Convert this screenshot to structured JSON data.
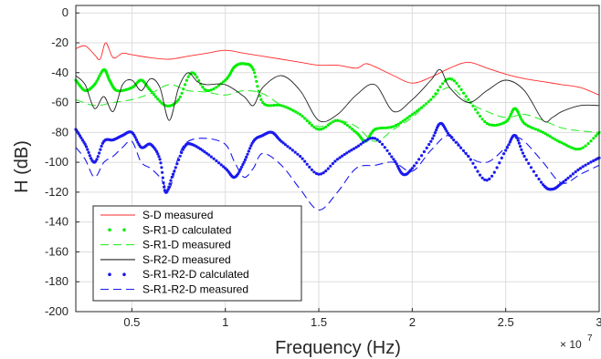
{
  "chart_data": {
    "type": "line",
    "xlabel": "Frequency (Hz)",
    "ylabel": "H (dB)",
    "x_multiplier_label": "× 10",
    "x_multiplier_exp": "7",
    "xlim": [
      0.2,
      3.0
    ],
    "ylim": [
      -200,
      5
    ],
    "x_ticks": [
      0.5,
      1,
      1.5,
      2,
      2.5,
      3
    ],
    "x_tick_labels": [
      "0.5",
      "1",
      "1.5",
      "2",
      "2.5",
      "3"
    ],
    "y_ticks": [
      0,
      -20,
      -40,
      -60,
      -80,
      -100,
      -120,
      -140,
      -160,
      -180,
      -200
    ],
    "y_tick_labels": [
      "0",
      "-20",
      "-40",
      "-60",
      "-80",
      "-100",
      "-120",
      "-140",
      "-160",
      "-180",
      "-200"
    ],
    "grid": true,
    "legend_position": "bottom-left",
    "series": [
      {
        "name": "S-D measured",
        "color": "#ff2a2a",
        "style": "solid",
        "x": [
          0.2,
          0.25,
          0.3,
          0.33,
          0.36,
          0.4,
          0.45,
          0.5,
          0.6,
          0.7,
          0.8,
          0.9,
          1.0,
          1.1,
          1.2,
          1.3,
          1.4,
          1.5,
          1.6,
          1.7,
          1.75,
          1.8,
          1.9,
          2.0,
          2.1,
          2.2,
          2.3,
          2.4,
          2.5,
          2.6,
          2.7,
          2.8,
          2.9,
          3.0
        ],
        "y": [
          -24,
          -22,
          -28,
          -31,
          -20,
          -30,
          -27,
          -28,
          -30,
          -31,
          -29,
          -27,
          -25,
          -27,
          -29,
          -31,
          -33,
          -35,
          -35,
          -37,
          -34,
          -36,
          -42,
          -47,
          -43,
          -37,
          -33,
          -37,
          -41,
          -44,
          -46,
          -48,
          -50,
          -55
        ]
      },
      {
        "name": "S-R1-D calculated",
        "color": "#00ee00",
        "style": "dots",
        "x": [
          0.2,
          0.25,
          0.3,
          0.35,
          0.38,
          0.42,
          0.5,
          0.55,
          0.6,
          0.68,
          0.75,
          0.82,
          0.9,
          1.0,
          1.05,
          1.1,
          1.15,
          1.2,
          1.3,
          1.4,
          1.5,
          1.6,
          1.7,
          1.75,
          1.8,
          1.9,
          2.0,
          2.1,
          2.2,
          2.3,
          2.4,
          2.5,
          2.55,
          2.6,
          2.7,
          2.8,
          2.9,
          3.0
        ],
        "y": [
          -45,
          -52,
          -48,
          -38,
          -45,
          -52,
          -50,
          -45,
          -52,
          -62,
          -58,
          -40,
          -52,
          -45,
          -36,
          -34,
          -38,
          -60,
          -62,
          -68,
          -78,
          -72,
          -80,
          -86,
          -78,
          -76,
          -68,
          -58,
          -44,
          -58,
          -74,
          -73,
          -64,
          -74,
          -80,
          -87,
          -91,
          -80
        ]
      },
      {
        "name": "S-R1-D measured",
        "color": "#33ee33",
        "style": "dashed",
        "x": [
          0.2,
          0.3,
          0.4,
          0.5,
          0.6,
          0.7,
          0.8,
          0.9,
          1.0,
          1.1,
          1.2,
          1.3,
          1.4,
          1.5,
          1.6,
          1.7,
          1.8,
          1.9,
          2.0,
          2.1,
          2.2,
          2.3,
          2.4,
          2.5,
          2.6,
          2.7,
          2.8,
          2.9,
          3.0
        ],
        "y": [
          -58,
          -62,
          -60,
          -58,
          -54,
          -48,
          -52,
          -53,
          -55,
          -52,
          -54,
          -62,
          -68,
          -76,
          -72,
          -76,
          -86,
          -78,
          -70,
          -58,
          -50,
          -60,
          -66,
          -70,
          -68,
          -72,
          -77,
          -79,
          -80
        ]
      },
      {
        "name": "S-R2-D measured",
        "color": "#222222",
        "style": "solid",
        "x": [
          0.2,
          0.25,
          0.3,
          0.35,
          0.4,
          0.45,
          0.5,
          0.55,
          0.6,
          0.65,
          0.7,
          0.75,
          0.8,
          0.85,
          0.9,
          1.0,
          1.1,
          1.15,
          1.2,
          1.3,
          1.4,
          1.5,
          1.6,
          1.7,
          1.8,
          1.9,
          2.0,
          2.1,
          2.15,
          2.2,
          2.3,
          2.4,
          2.5,
          2.6,
          2.7,
          2.75,
          2.8,
          2.9,
          3.0
        ],
        "y": [
          -42,
          -48,
          -64,
          -56,
          -66,
          -48,
          -45,
          -52,
          -44,
          -50,
          -72,
          -50,
          -40,
          -46,
          -48,
          -48,
          -56,
          -62,
          -50,
          -42,
          -52,
          -72,
          -68,
          -55,
          -48,
          -66,
          -58,
          -45,
          -38,
          -50,
          -60,
          -52,
          -45,
          -52,
          -72,
          -70,
          -66,
          -62,
          -62
        ]
      },
      {
        "name": "S-R1-R2-D calculated",
        "color": "#1a1aee",
        "style": "dots",
        "x": [
          0.2,
          0.25,
          0.3,
          0.35,
          0.4,
          0.45,
          0.5,
          0.55,
          0.6,
          0.65,
          0.68,
          0.72,
          0.78,
          0.82,
          0.9,
          1.0,
          1.05,
          1.1,
          1.15,
          1.2,
          1.25,
          1.3,
          1.4,
          1.5,
          1.6,
          1.7,
          1.8,
          1.9,
          1.95,
          2.0,
          2.1,
          2.15,
          2.2,
          2.3,
          2.4,
          2.5,
          2.55,
          2.6,
          2.7,
          2.75,
          2.8,
          2.9,
          3.0
        ],
        "y": [
          -78,
          -88,
          -100,
          -86,
          -85,
          -82,
          -80,
          -90,
          -88,
          -98,
          -120,
          -108,
          -90,
          -88,
          -94,
          -104,
          -110,
          -100,
          -86,
          -82,
          -80,
          -86,
          -96,
          -108,
          -98,
          -90,
          -84,
          -98,
          -108,
          -104,
          -86,
          -74,
          -82,
          -96,
          -112,
          -92,
          -82,
          -96,
          -115,
          -118,
          -114,
          -104,
          -97
        ]
      },
      {
        "name": "S-R1-R2-D measured",
        "color": "#1a1aee",
        "style": "dashed",
        "x": [
          0.2,
          0.25,
          0.3,
          0.35,
          0.4,
          0.45,
          0.5,
          0.55,
          0.6,
          0.65,
          0.7,
          0.75,
          0.8,
          0.9,
          1.0,
          1.05,
          1.1,
          1.15,
          1.2,
          1.3,
          1.4,
          1.5,
          1.6,
          1.7,
          1.8,
          1.9,
          2.0,
          2.1,
          2.2,
          2.3,
          2.4,
          2.5,
          2.55,
          2.6,
          2.7,
          2.8,
          2.9,
          3.0
        ],
        "y": [
          -90,
          -98,
          -110,
          -100,
          -96,
          -90,
          -86,
          -100,
          -104,
          -110,
          -118,
          -96,
          -86,
          -84,
          -88,
          -100,
          -110,
          -104,
          -94,
          -102,
          -118,
          -132,
          -120,
          -104,
          -102,
          -100,
          -106,
          -92,
          -82,
          -96,
          -100,
          -90,
          -84,
          -86,
          -100,
          -114,
          -108,
          -102
        ]
      }
    ]
  }
}
